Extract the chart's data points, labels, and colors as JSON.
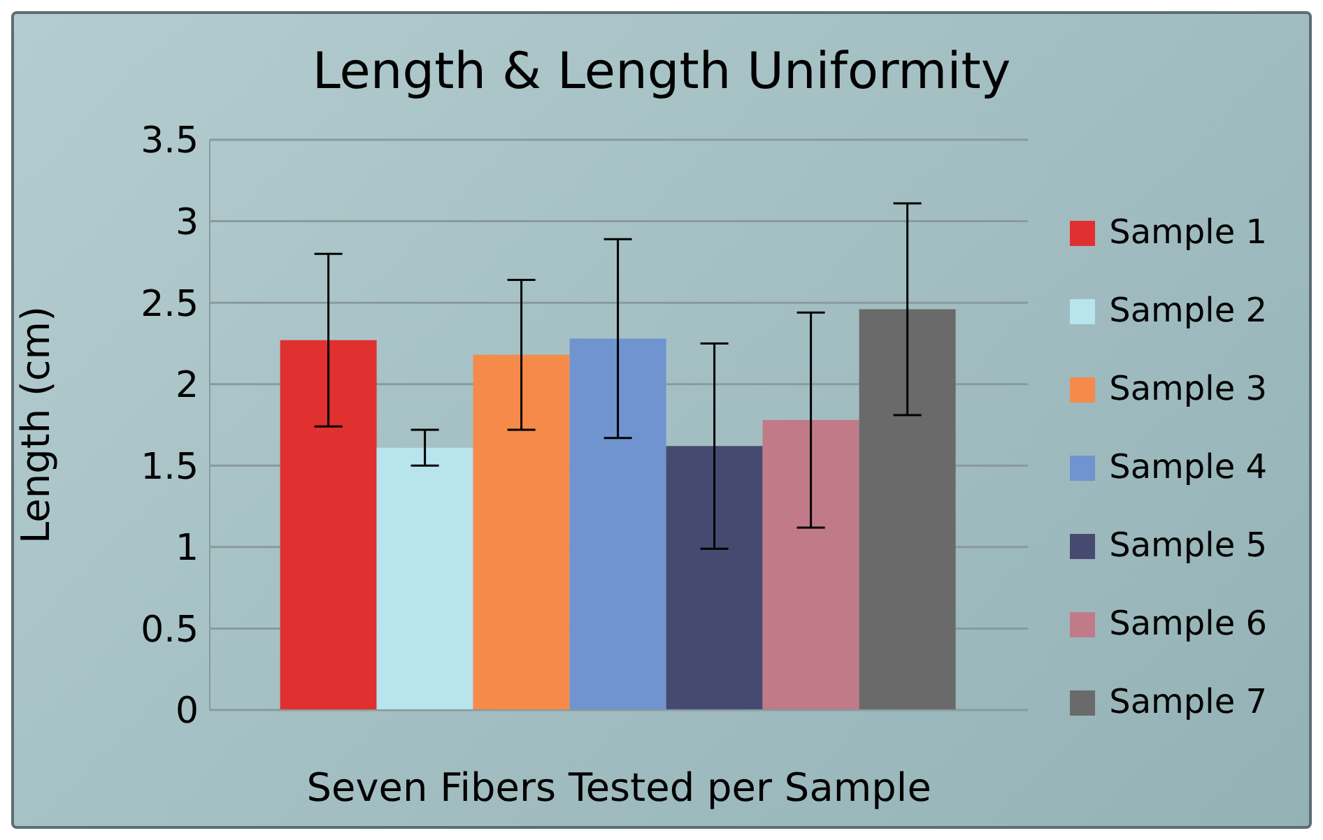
{
  "chart_data": {
    "type": "bar",
    "title": "Length & Length Uniformity",
    "xlabel": "Seven Fibers Tested per Sample",
    "ylabel": "Length (cm)",
    "categories": [
      null
    ],
    "series": [
      {
        "name": "Sample 1",
        "color": "#e03030",
        "values": [
          2.27
        ],
        "errors": [
          0.53
        ]
      },
      {
        "name": "Sample 2",
        "color": "#b8e4ee",
        "values": [
          1.61
        ],
        "errors": [
          0.11
        ]
      },
      {
        "name": "Sample 3",
        "color": "#f68a4a",
        "values": [
          2.18
        ],
        "errors": [
          0.46
        ]
      },
      {
        "name": "Sample 4",
        "color": "#6f94d0",
        "values": [
          2.28
        ],
        "errors": [
          0.61
        ]
      },
      {
        "name": "Sample 5",
        "color": "#464a70",
        "values": [
          1.62
        ],
        "errors": [
          0.63
        ]
      },
      {
        "name": "Sample 6",
        "color": "#c07a88",
        "values": [
          1.78
        ],
        "errors": [
          0.66
        ]
      },
      {
        "name": "Sample 7",
        "color": "#6a6a6a",
        "values": [
          2.46
        ],
        "errors": [
          0.65
        ]
      }
    ],
    "ylim": [
      0,
      3.5
    ],
    "yticks": [
      0,
      0.5,
      1,
      1.5,
      2,
      2.5,
      3,
      3.5
    ],
    "grid": "y",
    "legend": "right"
  }
}
